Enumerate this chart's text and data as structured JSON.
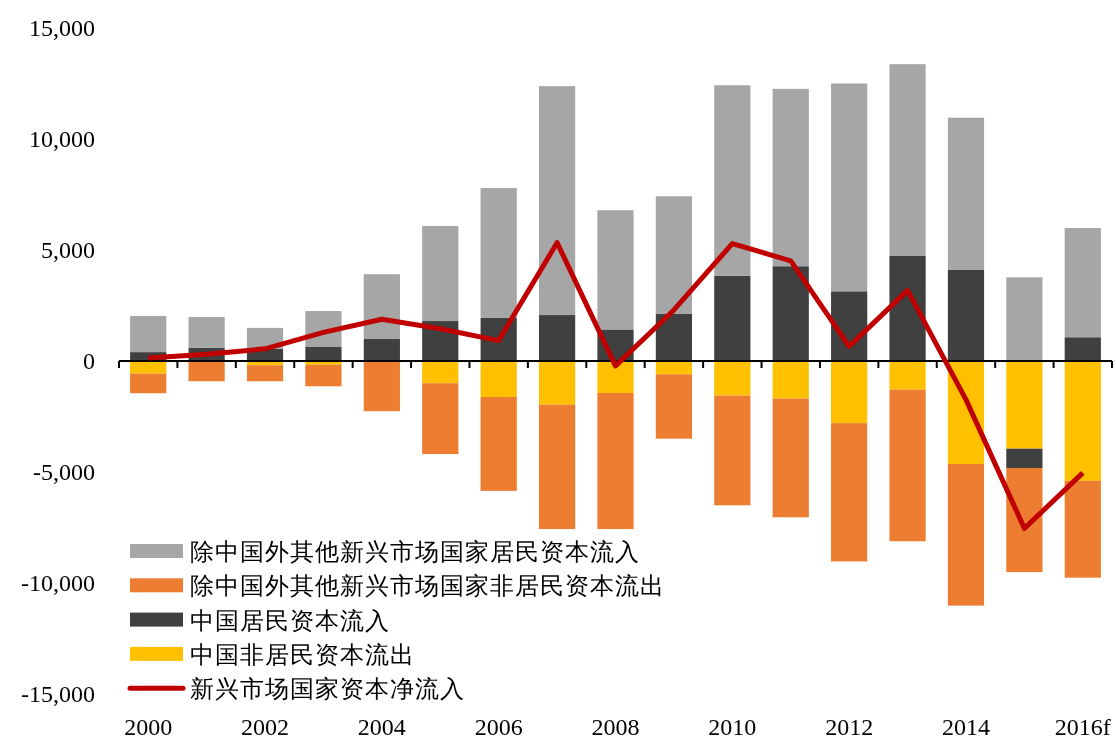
{
  "chart_data": {
    "type": "bar",
    "stacked": true,
    "categories": [
      "2000",
      null,
      "2002",
      null,
      "2004",
      null,
      "2006",
      null,
      "2008",
      null,
      "2010",
      null,
      "2012",
      null,
      "2014",
      null,
      "2016f"
    ],
    "series": [
      {
        "name": "中国非居民资本流出",
        "color": "#ffc000",
        "values": [
          -570,
          0,
          -190,
          -170,
          null,
          -1000,
          -1620,
          -1970,
          -1440,
          -600,
          -1560,
          -1690,
          -2800,
          -1290,
          -4640,
          -3950,
          -5400
        ]
      },
      {
        "name": "中国居民资本流入",
        "color": "#404040",
        "values": [
          400,
          600,
          550,
          630,
          990,
          1800,
          1940,
          2070,
          1420,
          2120,
          3840,
          4270,
          3140,
          4730,
          4100,
          -870,
          1070
        ]
      },
      {
        "name": "除中国外其他新兴市场国家非居民资本流出",
        "color": "#ed7d31",
        "values": [
          -880,
          -910,
          -720,
          -970,
          -2260,
          -3190,
          -4230,
          -5600,
          -6130,
          -2900,
          -4940,
          -5350,
          -6230,
          -6830,
          -6380,
          -4690,
          -4360
        ]
      },
      {
        "name": "除中国外其他新兴市场国家居民资本流入",
        "color": "#a6a6a6",
        "values": [
          1630,
          1380,
          940,
          1620,
          2920,
          4280,
          5850,
          10310,
          5370,
          5300,
          8580,
          7990,
          9360,
          8640,
          6860,
          3770,
          4920
        ]
      },
      {
        "name": "新兴市场国家资本净流入",
        "type": "line",
        "color": "#c00000",
        "values": [
          140,
          300,
          550,
          1290,
          1880,
          1450,
          920,
          5330,
          -220,
          2300,
          5290,
          4510,
          660,
          3180,
          -1740,
          -7540,
          -5040
        ]
      }
    ],
    "ylim": [
      -15000,
      15000
    ],
    "yticks": [
      {
        "value": -15000,
        "label": "-15,000"
      },
      {
        "value": -10000,
        "label": "-10,000"
      },
      {
        "value": -5000,
        "label": "-5,000"
      },
      0,
      {
        "value": 5000,
        "label": "5,000"
      },
      {
        "value": 10000,
        "label": "10,000"
      },
      {
        "value": 15000,
        "label": "15,000"
      }
    ],
    "legend": "bottom left",
    "marker": "none",
    "line_style": "solid"
  }
}
